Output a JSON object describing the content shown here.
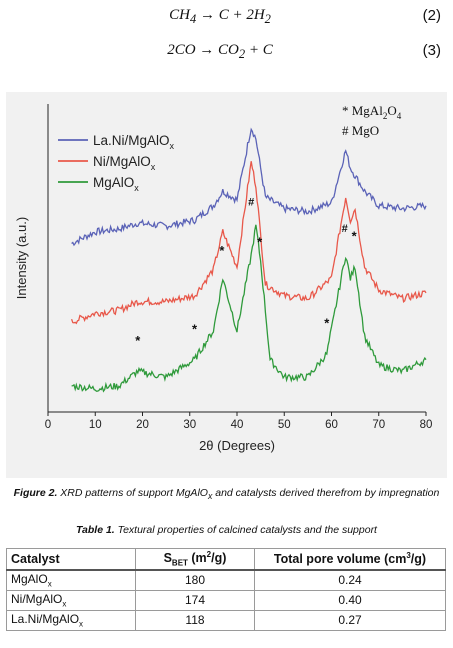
{
  "equations": [
    {
      "lhs": "CH",
      "lhs_sub": "4",
      "arrow": " → ",
      "rhs1": "C + 2H",
      "rhs_sub": "2",
      "number": "(2)"
    },
    {
      "lhs": "2CO",
      "arrow": " → ",
      "rhs1": "CO",
      "rhs_sub": "2",
      "rhs2": " + C",
      "number": "(3)"
    }
  ],
  "figure": {
    "caption_label": "Figure 2.",
    "caption_text_1": " XRD patterns of support MgAlO",
    "caption_text_2": " and catalysts derived therefrom by impregnation",
    "caption_sub": "x"
  },
  "chart_data": {
    "type": "line",
    "xlabel": "2θ (Degrees)",
    "ylabel": "Intensity (a.u.)",
    "xlim": [
      0,
      80
    ],
    "x_ticks": [
      "0",
      "10",
      "20",
      "30",
      "40",
      "50",
      "60",
      "70",
      "80"
    ],
    "y_ticks_labeled": false,
    "legend_position": "top-left",
    "annotation_legend": [
      {
        "symbol": "*",
        "label": "MgAl",
        "sub1": "2",
        "mid": "O",
        "sub2": "4"
      },
      {
        "symbol": "#",
        "label": "MgO"
      }
    ],
    "series": [
      {
        "name": "La.Ni/MgAlO",
        "name_sub": "x",
        "color": "#5b63b7",
        "x": [
          5,
          10,
          15,
          19,
          25,
          31,
          35,
          37,
          40,
          43,
          44,
          46,
          50,
          55,
          60,
          63,
          64,
          67,
          70,
          75,
          80
        ],
        "y": [
          2.9,
          3.1,
          3.15,
          3.25,
          3.2,
          3.3,
          3.55,
          3.8,
          3.65,
          4.9,
          4.7,
          3.7,
          3.5,
          3.45,
          3.6,
          4.5,
          4.2,
          3.8,
          3.55,
          3.5,
          3.55
        ]
      },
      {
        "name": "Ni/MgAlO",
        "name_sub": "x",
        "color": "#e8584a",
        "x": [
          5,
          10,
          15,
          19,
          25,
          31,
          35,
          37,
          40,
          43,
          44,
          46,
          50,
          55,
          60,
          63,
          64,
          65,
          67,
          70,
          75,
          80
        ],
        "y": [
          1.55,
          1.7,
          1.75,
          1.9,
          1.9,
          2.0,
          2.45,
          3.1,
          2.5,
          4.3,
          3.9,
          2.2,
          2.0,
          1.95,
          2.3,
          3.7,
          3.3,
          3.5,
          2.5,
          2.1,
          1.95,
          2.05
        ]
      },
      {
        "name": "MgAlO",
        "name_sub": "x",
        "color": "#2f9a3b",
        "x": [
          5,
          10,
          15,
          19,
          25,
          31,
          35,
          37,
          40,
          43,
          44,
          45,
          47,
          50,
          55,
          59,
          63,
          64,
          65,
          67,
          70,
          75,
          80
        ],
        "y": [
          0.45,
          0.4,
          0.45,
          0.7,
          0.6,
          0.9,
          1.4,
          2.3,
          1.4,
          2.7,
          3.2,
          2.6,
          0.9,
          0.6,
          0.6,
          1.0,
          2.7,
          2.3,
          2.5,
          1.3,
          0.8,
          0.7,
          0.9
        ]
      }
    ],
    "peak_markers": [
      {
        "symbol": "*",
        "x": 19,
        "y": 1.15
      },
      {
        "symbol": "*",
        "x": 31,
        "y": 1.35
      },
      {
        "symbol": "*",
        "x": 36.8,
        "y": 2.7
      },
      {
        "symbol": "#",
        "x": 43,
        "y": 3.55
      },
      {
        "symbol": "*",
        "x": 44.8,
        "y": 2.85
      },
      {
        "symbol": "*",
        "x": 59,
        "y": 1.45
      },
      {
        "symbol": "#",
        "x": 62.8,
        "y": 3.1
      },
      {
        "symbol": "*",
        "x": 64.8,
        "y": 2.95
      }
    ]
  },
  "table": {
    "title_label": "Table 1.",
    "title_text": " Textural properties of calcined catalysts and the support",
    "headers": {
      "catalyst": "Catalyst",
      "sbet_main": "S",
      "sbet_sub": "BET",
      "sbet_unit": " (m",
      "sbet_sup": "2",
      "sbet_end": "/g)",
      "pore_main": "Total pore volume (cm",
      "pore_sup": "3",
      "pore_end": "/g)"
    },
    "rows": [
      {
        "catalyst": "MgAlO",
        "sub": "x",
        "sbet": "180",
        "pore": "0.24"
      },
      {
        "catalyst": "Ni/MgAlO",
        "sub": "x",
        "sbet": "174",
        "pore": "0.40"
      },
      {
        "catalyst": "La.Ni/MgAlO",
        "sub": "x",
        "sbet": "118",
        "pore": "0.27"
      }
    ]
  }
}
